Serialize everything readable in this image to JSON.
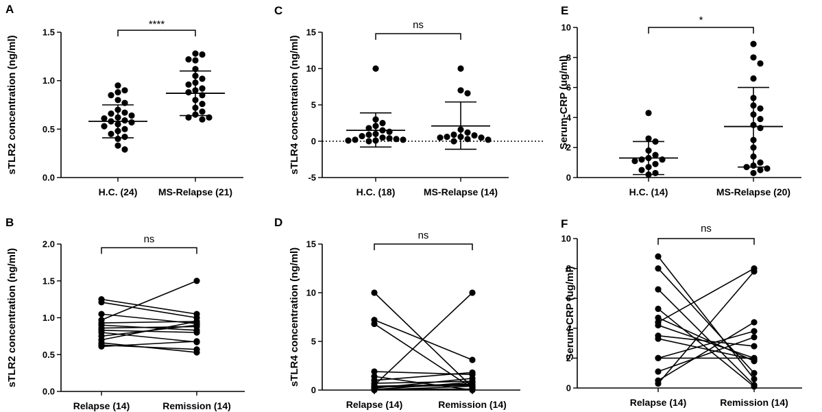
{
  "colors": {
    "ink": "#000000",
    "background": "#ffffff"
  },
  "chart_data": [
    {
      "id": "A",
      "type": "scatter",
      "title": "",
      "panel_label": "A",
      "ylabel": "sTLR2 concentration (ng/ml)",
      "ylim": [
        0,
        1.5
      ],
      "yticks": [
        0.0,
        0.5,
        1.0,
        1.5
      ],
      "ytick_labels": [
        "0.0",
        "0.5",
        "1.0",
        "1.5"
      ],
      "zero_line": false,
      "categories": [
        "H.C. (24)",
        "MS-Relapse (21)"
      ],
      "groups": [
        {
          "name": "H.C. (24)",
          "mean": 0.58,
          "sd_low": 0.41,
          "sd_high": 0.75,
          "values": [
            0.95,
            0.9,
            0.88,
            0.85,
            0.8,
            0.77,
            0.7,
            0.67,
            0.66,
            0.64,
            0.62,
            0.61,
            0.59,
            0.58,
            0.57,
            0.55,
            0.53,
            0.5,
            0.48,
            0.45,
            0.42,
            0.4,
            0.33,
            0.29
          ]
        },
        {
          "name": "MS-Relapse (21)",
          "mean": 0.87,
          "sd_low": 0.64,
          "sd_high": 1.1,
          "values": [
            1.28,
            1.27,
            1.22,
            1.21,
            1.12,
            1.05,
            1.02,
            0.98,
            0.96,
            0.92,
            0.9,
            0.88,
            0.85,
            0.8,
            0.76,
            0.72,
            0.68,
            0.65,
            0.62,
            0.62,
            0.6
          ]
        }
      ],
      "significance": "****",
      "bracket_y": 1.52
    },
    {
      "id": "C",
      "type": "scatter",
      "title": "",
      "panel_label": "C",
      "ylabel": "sTLR4 concentration (ng/ml)",
      "ylim": [
        -5,
        15
      ],
      "yticks": [
        -5,
        0,
        5,
        10,
        15
      ],
      "ytick_labels": [
        "-5",
        "0",
        "5",
        "10",
        "15"
      ],
      "zero_line": true,
      "categories": [
        "H.C. (18)",
        "MS-Relapse (14)"
      ],
      "groups": [
        {
          "name": "H.C. (18)",
          "mean": 1.5,
          "sd_low": -0.8,
          "sd_high": 3.9,
          "values": [
            10.0,
            3.0,
            2.5,
            2.1,
            1.8,
            1.5,
            1.3,
            1.0,
            0.9,
            0.7,
            0.5,
            0.4,
            0.3,
            0.2,
            0.2,
            0.1,
            0.1,
            0.0
          ]
        },
        {
          "name": "MS-Relapse (14)",
          "mean": 2.1,
          "sd_low": -1.1,
          "sd_high": 5.4,
          "values": [
            10.0,
            7.0,
            6.6,
            1.6,
            1.2,
            0.9,
            0.8,
            0.6,
            0.6,
            0.5,
            0.5,
            0.3,
            0.2,
            0.0
          ]
        }
      ],
      "significance": "ns",
      "bracket_y": 14.8
    },
    {
      "id": "E",
      "type": "scatter",
      "title": "",
      "panel_label": "E",
      "ylabel": "Serum-CRP (ug/ml)",
      "ylim": [
        0,
        10
      ],
      "yticks": [
        0,
        2,
        4,
        6,
        8,
        10
      ],
      "ytick_labels": [
        "0",
        "2",
        "4",
        "6",
        "8",
        "10"
      ],
      "zero_line": false,
      "categories": [
        "H.C. (14)",
        "MS-Relapse (20)"
      ],
      "groups": [
        {
          "name": "H.C. (14)",
          "mean": 1.3,
          "sd_low": 0.2,
          "sd_high": 2.4,
          "values": [
            4.3,
            2.6,
            2.4,
            1.8,
            1.5,
            1.3,
            1.2,
            1.2,
            1.1,
            0.9,
            0.7,
            0.5,
            0.3,
            0.2
          ]
        },
        {
          "name": "MS-Relapse (20)",
          "mean": 3.4,
          "sd_low": 0.7,
          "sd_high": 6.0,
          "values": [
            8.9,
            8.0,
            7.6,
            6.6,
            5.3,
            4.8,
            4.6,
            4.2,
            3.9,
            3.5,
            3.3,
            2.5,
            2.0,
            1.4,
            1.0,
            0.8,
            0.7,
            0.6,
            0.5,
            0.3
          ]
        }
      ],
      "significance": "*",
      "bracket_y": 10.0
    },
    {
      "id": "B",
      "type": "paired",
      "title": "",
      "panel_label": "B",
      "ylabel": "sTLR2 concentration (ng/ml)",
      "ylim": [
        0,
        2.0
      ],
      "yticks": [
        0.0,
        0.5,
        1.0,
        1.5,
        2.0
      ],
      "ytick_labels": [
        "0.0",
        "0.5",
        "1.0",
        "1.5",
        "2.0"
      ],
      "zero_line": false,
      "categories": [
        "Relapse (14)",
        "Remission (14)"
      ],
      "pairs": [
        [
          1.25,
          1.05
        ],
        [
          1.21,
          1.0
        ],
        [
          1.05,
          0.92
        ],
        [
          0.97,
          1.5
        ],
        [
          0.93,
          0.95
        ],
        [
          0.9,
          0.83
        ],
        [
          0.86,
          0.88
        ],
        [
          0.83,
          0.8
        ],
        [
          0.8,
          0.67
        ],
        [
          0.75,
          0.9
        ],
        [
          0.7,
          0.95
        ],
        [
          0.66,
          0.53
        ],
        [
          0.63,
          0.57
        ],
        [
          0.61,
          0.68
        ]
      ],
      "significance": "ns",
      "bracket_y": 1.95
    },
    {
      "id": "D",
      "type": "paired",
      "title": "",
      "panel_label": "D",
      "ylabel": "sTLR4 concentration (ng/ml)",
      "ylim": [
        0,
        15
      ],
      "yticks": [
        0,
        5,
        10,
        15
      ],
      "ytick_labels": [
        "0",
        "5",
        "10",
        "15"
      ],
      "zero_line": false,
      "categories": [
        "Relapse (14)",
        "Remission (14)"
      ],
      "pairs": [
        [
          10.0,
          0.3
        ],
        [
          7.2,
          3.1
        ],
        [
          6.8,
          0.2
        ],
        [
          1.9,
          1.6
        ],
        [
          1.4,
          0.0
        ],
        [
          1.0,
          1.8
        ],
        [
          0.7,
          0.9
        ],
        [
          0.5,
          10.0
        ],
        [
          0.4,
          0.6
        ],
        [
          0.3,
          0.5
        ],
        [
          0.2,
          1.2
        ],
        [
          0.1,
          0.1
        ],
        [
          0.05,
          0.8
        ],
        [
          0.0,
          0.4
        ]
      ],
      "significance": "ns",
      "bracket_y": 15.0
    },
    {
      "id": "F",
      "type": "paired",
      "title": "",
      "panel_label": "F",
      "ylabel": "Serum-CRP (ug/ml)",
      "ylim": [
        0,
        10
      ],
      "yticks": [
        0,
        2,
        4,
        6,
        8,
        10
      ],
      "ytick_labels": [
        "0",
        "2",
        "4",
        "6",
        "8",
        "10"
      ],
      "zero_line": false,
      "categories": [
        "Relapse (14)",
        "Remission (14)"
      ],
      "pairs": [
        [
          8.8,
          0.6
        ],
        [
          8.0,
          1.0
        ],
        [
          6.6,
          0.2
        ],
        [
          5.3,
          0.1
        ],
        [
          4.7,
          1.8
        ],
        [
          4.4,
          8.0
        ],
        [
          4.2,
          2.0
        ],
        [
          3.5,
          2.8
        ],
        [
          3.3,
          1.9
        ],
        [
          2.0,
          2.0
        ],
        [
          2.0,
          3.8
        ],
        [
          1.1,
          3.4
        ],
        [
          0.5,
          4.4
        ],
        [
          0.3,
          7.8
        ]
      ],
      "significance": "ns",
      "bracket_y": 10.0
    }
  ]
}
